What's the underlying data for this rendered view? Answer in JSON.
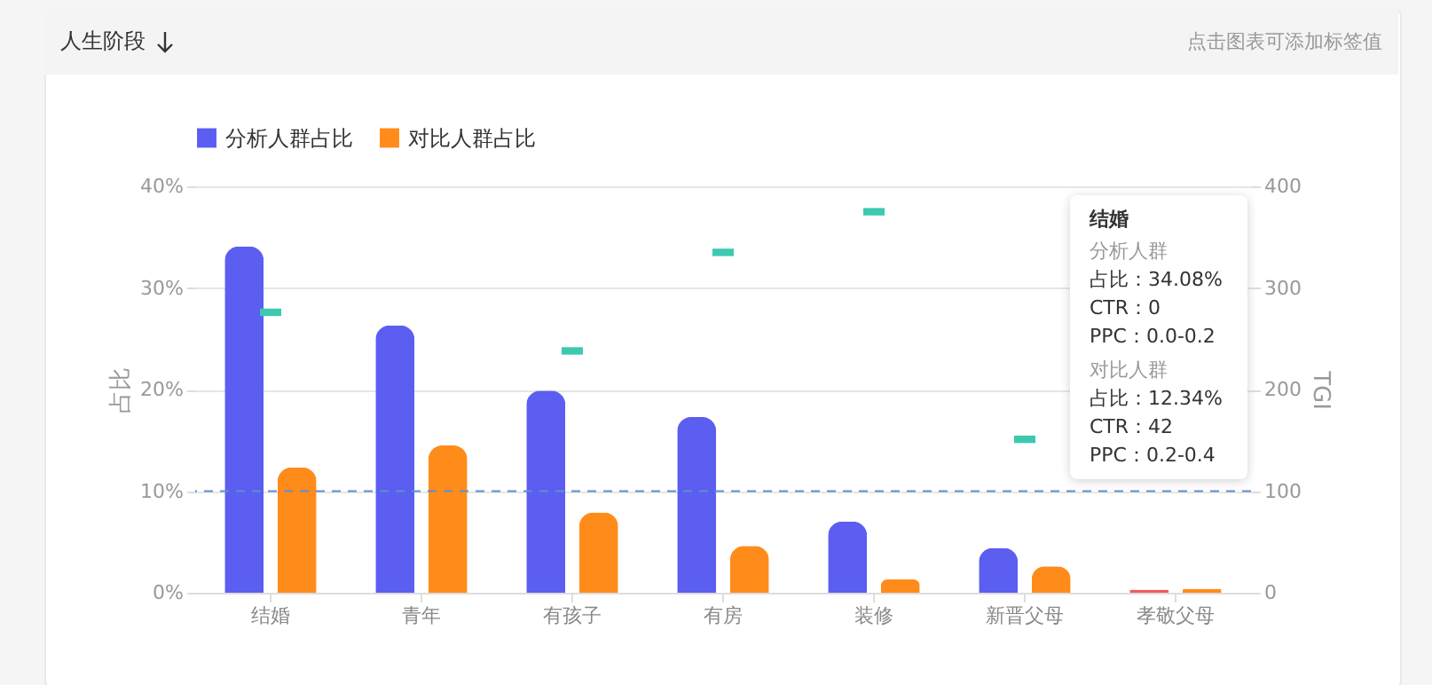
{
  "chart_data": {
    "type": "bar",
    "title": "人生阶段",
    "ylabel": "占比",
    "y2label": "TGI",
    "categories": [
      "结婚",
      "青年",
      "有孩子",
      "有房",
      "装修",
      "新晋父母",
      "孝敬父母"
    ],
    "series": [
      {
        "name": "分析人群占比",
        "color": "#5b5ef0",
        "colors": [
          "#5b5ef0",
          "#5b5ef0",
          "#5b5ef0",
          "#5b5ef0",
          "#5b5ef0",
          "#5b5ef0",
          "#f05a5a"
        ],
        "values": [
          34.08,
          26.3,
          19.9,
          17.3,
          7.0,
          4.4,
          0.3
        ]
      },
      {
        "name": "对比人群占比",
        "color": "#ff8c1a",
        "values": [
          12.34,
          14.5,
          7.9,
          4.6,
          1.3,
          2.6,
          0.4
        ]
      },
      {
        "type": "scatter",
        "axis": "y2",
        "color": "#3cc9b0",
        "values": [
          276,
          null,
          238,
          335,
          375,
          151,
          null
        ]
      }
    ],
    "ylim": [
      0,
      40
    ],
    "yticks": [
      {
        "value": 0,
        "label": "0%"
      },
      {
        "value": 10,
        "label": "10%"
      },
      {
        "value": 20,
        "label": "20%"
      },
      {
        "value": 30,
        "label": "30%"
      },
      {
        "value": 40,
        "label": "40%"
      }
    ],
    "y2lim": [
      0,
      400
    ],
    "y2ticks": [
      0,
      100,
      200,
      300,
      400
    ],
    "ref_lines": [
      {
        "axis": "y2",
        "value": 100,
        "color": "#5b8fd0",
        "line_style": "dashed"
      }
    ],
    "grid": "y",
    "legend": "top left",
    "annotations": [
      "点击图表可添加标签值",
      "结婚",
      "分析人群",
      "占比：34.08%",
      "CTR：0",
      "PPC：0.0-0.2",
      "对比人群",
      "占比：12.34%",
      "CTR：42",
      "PPC：0.2-0.4"
    ]
  }
}
